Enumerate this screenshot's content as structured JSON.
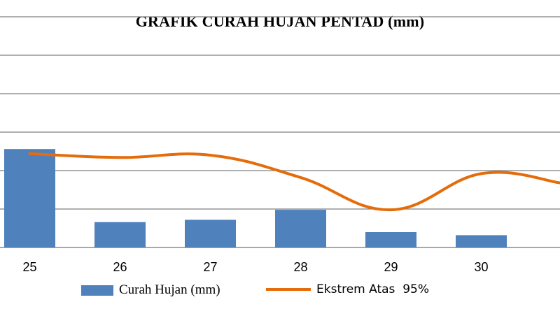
{
  "chart_data": {
    "type": "bar",
    "title": "GRAFIK CURAH HUJAN PENTAD (mm)",
    "xlabel": "",
    "ylabel": "",
    "categories": [
      "25",
      "26",
      "27",
      "28",
      "29",
      "30",
      ""
    ],
    "ylim": [
      0,
      300
    ],
    "grid": true,
    "legend_position": "bottom",
    "series": [
      {
        "name": "Curah Hujan (mm)",
        "type": "bar",
        "color": "#4f81bd",
        "values": [
          128,
          33,
          36,
          49,
          20,
          16,
          null
        ]
      },
      {
        "name": "Ekstrem Atas  95%",
        "type": "line",
        "color": "#e46c0a",
        "values": [
          122,
          117,
          120,
          91,
          49,
          96,
          84
        ]
      }
    ]
  }
}
